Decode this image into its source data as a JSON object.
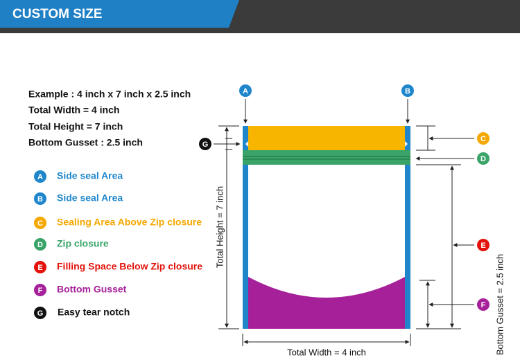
{
  "header": {
    "title": "CUSTOM SIZE"
  },
  "example": {
    "lines": [
      "Example : 4 inch x 7 inch x 2.5 inch",
      "Total Width = 4 inch",
      "Total Height = 7 inch",
      "Bottom Gusset : 2.5 inch"
    ]
  },
  "legend": [
    {
      "letter": "A",
      "label": "Side seal Area"
    },
    {
      "letter": "B",
      "label": "Side seal Area"
    },
    {
      "letter": "C",
      "label": "Sealing Area Above Zip closure"
    },
    {
      "letter": "D",
      "label": "Zip closure"
    },
    {
      "letter": "E",
      "label": "Filling Space Below Zip closure"
    },
    {
      "letter": "F",
      "label": "Bottom Gusset"
    },
    {
      "letter": "G",
      "label": "Easy tear notch"
    }
  ],
  "diagram": {
    "height_label": "Total Height = 7 inch",
    "width_label": "Total Width = 4 inch",
    "gusset_label": "Bottom Gusset = 2.5 inch"
  }
}
